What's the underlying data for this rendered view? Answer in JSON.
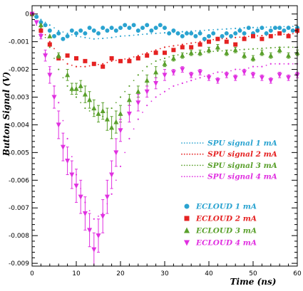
{
  "chart_data": {
    "type": "scatter",
    "xlabel": "Time (ns)",
    "ylabel": "Button Signal (V)",
    "xlim": [
      0,
      60
    ],
    "ylim": [
      -0.0091,
      0.0003
    ],
    "xticks": [
      0,
      10,
      20,
      30,
      40,
      50,
      60
    ],
    "xtick_labels": [
      "0",
      "10",
      "20",
      "30",
      "40",
      "50",
      "60"
    ],
    "yticks": [
      0,
      -0.001,
      -0.002,
      -0.003,
      -0.004,
      -0.005,
      -0.006,
      -0.007,
      -0.008,
      -0.009
    ],
    "ytick_labels": [
      "0",
      "-0.001",
      "-0.002",
      "-0.003",
      "-0.004",
      "-0.005",
      "-0.006",
      "-0.007",
      "-0.008",
      "-0.009"
    ],
    "grid": false,
    "legend_placement": "right",
    "series": [
      {
        "name": "SPU signal 1 mA",
        "kind": "dots",
        "color": "#2aa3d0",
        "x": [
          0,
          2,
          4,
          6,
          8,
          10,
          12,
          14,
          16,
          18,
          20,
          22,
          24,
          26,
          28,
          30,
          32,
          34,
          36,
          38,
          40,
          42,
          44,
          46,
          48,
          50,
          52,
          54,
          56,
          58,
          60
        ],
        "y": [
          0,
          -0.0002,
          -0.0004,
          -0.0006,
          -0.0007,
          -0.0008,
          -0.00085,
          -0.0009,
          -0.00088,
          -0.00085,
          -0.0008,
          -0.00078,
          -0.00075,
          -0.00072,
          -0.0007,
          -0.00068,
          -0.00066,
          -0.00064,
          -0.00062,
          -0.0006,
          -0.00058,
          -0.00056,
          -0.00054,
          -0.00052,
          -0.0005,
          -0.00049,
          -0.00048,
          -0.00047,
          -0.00046,
          -0.00045,
          -0.00045
        ]
      },
      {
        "name": "SPU signal 2 mA",
        "kind": "dots",
        "color": "#e52222",
        "x": [
          0,
          2,
          4,
          6,
          8,
          10,
          12,
          14,
          16,
          18,
          20,
          22,
          24,
          26,
          28,
          30,
          32,
          34,
          36,
          38,
          40,
          42,
          44,
          46,
          48,
          50,
          52,
          54,
          56,
          58,
          60
        ],
        "y": [
          0,
          -0.0005,
          -0.001,
          -0.0015,
          -0.0018,
          -0.0019,
          -0.0019,
          -0.00185,
          -0.0018,
          -0.0017,
          -0.00165,
          -0.0016,
          -0.0015,
          -0.0014,
          -0.0013,
          -0.0012,
          -0.00115,
          -0.0011,
          -0.00105,
          -0.001,
          -0.00095,
          -0.0009,
          -0.00088,
          -0.00085,
          -0.00082,
          -0.0008,
          -0.00078,
          -0.00076,
          -0.00074,
          -0.00072,
          -0.0007
        ]
      },
      {
        "name": "SPU signal 3 mA",
        "kind": "dots",
        "color": "#5aa02c",
        "x": [
          0,
          2,
          4,
          6,
          8,
          10,
          12,
          14,
          16,
          18,
          20,
          22,
          24,
          26,
          28,
          30,
          32,
          34,
          36,
          38,
          40,
          42,
          44,
          46,
          48,
          50,
          52,
          54,
          56,
          58,
          60
        ],
        "y": [
          0,
          -0.0005,
          -0.0012,
          -0.002,
          -0.0026,
          -0.003,
          -0.0034,
          -0.0036,
          -0.0037,
          -0.0034,
          -0.003,
          -0.0026,
          -0.0022,
          -0.0019,
          -0.0017,
          -0.0016,
          -0.0015,
          -0.00145,
          -0.0014,
          -0.00138,
          -0.00136,
          -0.00134,
          -0.00132,
          -0.0013,
          -0.00128,
          -0.00126,
          -0.00124,
          -0.00122,
          -0.0012,
          -0.0012,
          -0.0012
        ]
      },
      {
        "name": "SPU signal 4 mA",
        "kind": "dots",
        "color": "#e030e0",
        "x": [
          0,
          2,
          4,
          6,
          8,
          10,
          12,
          14,
          16,
          18,
          20,
          22,
          24,
          26,
          28,
          30,
          32,
          34,
          36,
          38,
          40,
          42,
          44,
          46,
          48,
          50,
          52,
          54,
          56,
          58,
          60
        ],
        "y": [
          0,
          -0.0008,
          -0.002,
          -0.0032,
          -0.0045,
          -0.0058,
          -0.0068,
          -0.0074,
          -0.0072,
          -0.0065,
          -0.0055,
          -0.0045,
          -0.0038,
          -0.0033,
          -0.003,
          -0.0028,
          -0.0026,
          -0.0025,
          -0.0024,
          -0.0023,
          -0.0022,
          -0.0021,
          -0.0021,
          -0.002,
          -0.002,
          -0.0019,
          -0.0019,
          -0.0018,
          -0.0018,
          -0.0018,
          -0.0018
        ]
      },
      {
        "name": "ECLOUD 1 mA",
        "kind": "markers",
        "marker": "circle",
        "color": "#2aa3d0",
        "x": [
          0,
          1,
          2,
          3,
          4,
          5,
          6,
          7,
          8,
          9,
          10,
          11,
          12,
          13,
          14,
          15,
          16,
          17,
          18,
          19,
          20,
          21,
          22,
          23,
          24,
          25,
          26,
          27,
          28,
          29,
          30,
          31,
          32,
          33,
          34,
          35,
          36,
          37,
          38,
          39,
          40,
          41,
          42,
          43,
          44,
          45,
          46,
          47,
          48,
          49,
          50,
          51,
          52,
          53,
          54,
          55,
          56,
          57,
          58,
          59,
          60
        ],
        "y": [
          0,
          -0.0001,
          -0.0003,
          -0.0004,
          -0.0006,
          -0.0008,
          -0.0007,
          -0.0009,
          -0.0008,
          -0.0006,
          -0.0007,
          -0.0006,
          -0.0007,
          -0.0005,
          -0.0006,
          -0.0007,
          -0.0005,
          -0.0006,
          -0.0005,
          -0.0006,
          -0.0005,
          -0.0004,
          -0.0005,
          -0.0004,
          -0.0006,
          -0.0005,
          -0.0004,
          -0.0006,
          -0.0005,
          -0.0004,
          -0.0005,
          -0.0007,
          -0.0006,
          -0.0007,
          -0.0008,
          -0.0007,
          -0.0007,
          -0.0008,
          -0.0007,
          -0.0009,
          -0.0008,
          -0.0007,
          -0.0009,
          -0.0008,
          -0.0007,
          -0.0008,
          -0.0007,
          -0.0006,
          -0.0007,
          -0.0005,
          -0.0007,
          -0.0006,
          -0.0005,
          -0.0007,
          -0.0006,
          -0.0005,
          -0.0005,
          -0.0006,
          -0.0005,
          -0.0006,
          -0.0005
        ]
      },
      {
        "name": "ECLOUD 2 mA",
        "kind": "markers",
        "marker": "square",
        "color": "#e52222",
        "x": [
          0,
          2,
          4,
          6,
          8,
          10,
          12,
          14,
          16,
          18,
          20,
          22,
          24,
          26,
          28,
          30,
          32,
          34,
          36,
          38,
          40,
          42,
          44,
          46,
          48,
          50,
          52,
          54,
          56,
          58,
          60
        ],
        "y": [
          0,
          -0.0006,
          -0.0011,
          -0.0016,
          -0.0015,
          -0.0016,
          -0.0017,
          -0.0018,
          -0.0019,
          -0.0016,
          -0.0017,
          -0.0017,
          -0.0016,
          -0.0015,
          -0.0014,
          -0.0014,
          -0.0013,
          -0.0012,
          -0.0012,
          -0.0011,
          -0.001,
          -0.0009,
          -0.001,
          -0.0011,
          -0.0009,
          -0.0008,
          -0.0009,
          -0.0008,
          -0.0007,
          -0.0008,
          -0.0006
        ]
      },
      {
        "name": "ECLOUD 3 mA",
        "kind": "markers",
        "marker": "triangle-up",
        "color": "#5aa02c",
        "x": [
          0,
          2,
          4,
          6,
          8,
          9,
          10,
          11,
          12,
          13,
          14,
          15,
          16,
          17,
          18,
          19,
          20,
          22,
          24,
          26,
          28,
          30,
          32,
          34,
          36,
          38,
          40,
          42,
          44,
          46,
          48,
          50,
          52,
          54,
          56,
          58,
          60
        ],
        "y": [
          0,
          -0.0004,
          -0.0008,
          -0.0015,
          -0.0022,
          -0.0027,
          -0.0027,
          -0.0026,
          -0.0029,
          -0.0031,
          -0.0034,
          -0.0036,
          -0.0035,
          -0.0038,
          -0.0041,
          -0.0039,
          -0.0036,
          -0.0031,
          -0.0028,
          -0.0024,
          -0.0021,
          -0.0018,
          -0.0016,
          -0.0015,
          -0.0014,
          -0.0014,
          -0.0013,
          -0.0012,
          -0.0014,
          -0.0013,
          -0.0015,
          -0.0016,
          -0.0014,
          -0.0015,
          -0.0013,
          -0.0015,
          -0.0014
        ],
        "yerr": [
          0,
          0,
          0,
          0.0001,
          0.0002,
          0.0002,
          0.0002,
          0.0002,
          0.0003,
          0.0003,
          0.0003,
          0.0003,
          0.0003,
          0.0004,
          0.0004,
          0.0004,
          0.0003,
          0.0002,
          0.0002,
          0.0002,
          0.0002,
          0.0001,
          0.0001,
          0.0001,
          0.0001,
          0.0001,
          0.0001,
          0.0001,
          0.0001,
          0.0001,
          0.0001,
          0.0001,
          0.0001,
          0.0001,
          0.0001,
          0.0001,
          0.0001
        ]
      },
      {
        "name": "ECLOUD 4 mA",
        "kind": "markers",
        "marker": "triangle-down",
        "color": "#e030e0",
        "x": [
          0,
          1,
          2,
          3,
          4,
          5,
          6,
          7,
          8,
          9,
          10,
          11,
          12,
          13,
          14,
          15,
          16,
          17,
          18,
          19,
          20,
          22,
          24,
          26,
          28,
          30,
          32,
          34,
          36,
          38,
          40,
          42,
          44,
          46,
          48,
          50,
          52,
          54,
          56,
          58,
          60
        ],
        "y": [
          0,
          -0.0003,
          -0.0008,
          -0.0015,
          -0.0022,
          -0.003,
          -0.004,
          -0.0048,
          -0.0053,
          -0.0058,
          -0.0062,
          -0.0066,
          -0.0072,
          -0.0078,
          -0.0085,
          -0.008,
          -0.0073,
          -0.0066,
          -0.0058,
          -0.005,
          -0.0042,
          -0.0036,
          -0.0032,
          -0.0028,
          -0.0025,
          -0.0022,
          -0.0021,
          -0.002,
          -0.0022,
          -0.0021,
          -0.0023,
          -0.0024,
          -0.0022,
          -0.0023,
          -0.0021,
          -0.0022,
          -0.0023,
          -0.0024,
          -0.0022,
          -0.0023,
          -0.0022
        ],
        "yerr": [
          0,
          0,
          0.0001,
          0.0002,
          0.0003,
          0.0004,
          0.0005,
          0.0005,
          0.0005,
          0.0005,
          0.0006,
          0.0006,
          0.0006,
          0.0006,
          0.0006,
          0.0006,
          0.0006,
          0.0006,
          0.0005,
          0.0005,
          0.0004,
          0.0003,
          0.0003,
          0.0002,
          0.0002,
          0.0002,
          0.0001,
          0.0001,
          0.0001,
          0.0001,
          0.0001,
          0.0001,
          0.0001,
          0.0001,
          0.0001,
          0.0001,
          0.0001,
          0.0001,
          0.0001,
          0.0001,
          0.0001
        ]
      }
    ]
  }
}
